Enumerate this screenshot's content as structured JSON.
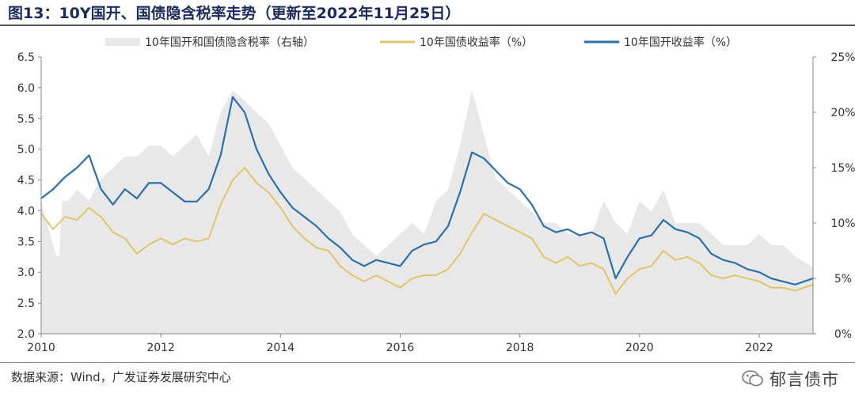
{
  "title": "图13：10Y国开、国债隐含税率走势（更新至2022年11月25日）",
  "source": "数据来源：Wind，广发证券发展研究中心",
  "watermark": "郁言债市",
  "colors": {
    "tax_fill": "#e8e8e8",
    "govt_line": "#e2c46a",
    "cdb_line": "#2b6fad"
  },
  "chart_data": {
    "type": "line",
    "title": "10Y国开、国债隐含税率走势",
    "x_ticks": [
      "2010",
      "2012",
      "2014",
      "2016",
      "2018",
      "2020",
      "2022"
    ],
    "x_range": [
      2010.0,
      2022.9
    ],
    "y_left": {
      "range": [
        2.0,
        6.5
      ],
      "ticks": [
        "2.0",
        "2.5",
        "3.0",
        "3.5",
        "4.0",
        "4.5",
        "5.0",
        "5.5",
        "6.0",
        "6.5"
      ]
    },
    "y_right": {
      "range": [
        0,
        25
      ],
      "ticks": [
        "0%",
        "5%",
        "10%",
        "15%",
        "20%",
        "25%"
      ]
    },
    "series": [
      {
        "name": "10年国开和国债隐含税率（右轴）",
        "kind": "area",
        "axis": "right",
        "x": [
          2010.0,
          2010.15,
          2010.25,
          2010.3,
          2010.35,
          2010.45,
          2010.6,
          2010.8,
          2011.0,
          2011.2,
          2011.4,
          2011.6,
          2011.8,
          2012.0,
          2012.2,
          2012.4,
          2012.6,
          2012.8,
          2013.0,
          2013.2,
          2013.4,
          2013.6,
          2013.8,
          2014.0,
          2014.2,
          2014.4,
          2014.6,
          2014.8,
          2015.0,
          2015.2,
          2015.4,
          2015.6,
          2015.8,
          2016.0,
          2016.2,
          2016.4,
          2016.6,
          2016.8,
          2017.0,
          2017.2,
          2017.4,
          2017.6,
          2017.8,
          2018.0,
          2018.2,
          2018.4,
          2018.6,
          2018.8,
          2019.0,
          2019.2,
          2019.4,
          2019.6,
          2019.8,
          2020.0,
          2020.2,
          2020.4,
          2020.6,
          2020.8,
          2021.0,
          2021.2,
          2021.4,
          2021.6,
          2021.8,
          2022.0,
          2022.2,
          2022.4,
          2022.6,
          2022.9
        ],
        "values": [
          12,
          9,
          7,
          7,
          12,
          12,
          13,
          12,
          14,
          15,
          16,
          16,
          17,
          17,
          16,
          17,
          18,
          16,
          20,
          22,
          21,
          20,
          19,
          17,
          15,
          14,
          13,
          12,
          11,
          9,
          8,
          7,
          8,
          9,
          10,
          9,
          12,
          13,
          17,
          22,
          18,
          14,
          13,
          12,
          11,
          10,
          10,
          9,
          9,
          9,
          12,
          10,
          9,
          12,
          11,
          13,
          10,
          10,
          10,
          9,
          8,
          8,
          8,
          9,
          8,
          8,
          7,
          6
        ]
      },
      {
        "name": "10年国债收益率（%）",
        "kind": "line",
        "axis": "left",
        "x": [
          2010.0,
          2010.2,
          2010.4,
          2010.6,
          2010.8,
          2011.0,
          2011.2,
          2011.4,
          2011.6,
          2011.8,
          2012.0,
          2012.2,
          2012.4,
          2012.6,
          2012.8,
          2013.0,
          2013.2,
          2013.4,
          2013.6,
          2013.8,
          2014.0,
          2014.2,
          2014.4,
          2014.6,
          2014.8,
          2015.0,
          2015.2,
          2015.4,
          2015.6,
          2015.8,
          2016.0,
          2016.2,
          2016.4,
          2016.6,
          2016.8,
          2017.0,
          2017.2,
          2017.4,
          2017.6,
          2017.8,
          2018.0,
          2018.2,
          2018.4,
          2018.6,
          2018.8,
          2019.0,
          2019.2,
          2019.4,
          2019.6,
          2019.8,
          2020.0,
          2020.2,
          2020.4,
          2020.6,
          2020.8,
          2021.0,
          2021.2,
          2021.4,
          2021.6,
          2021.8,
          2022.0,
          2022.2,
          2022.4,
          2022.6,
          2022.9
        ],
        "values": [
          3.95,
          3.7,
          3.9,
          3.85,
          4.05,
          3.9,
          3.65,
          3.55,
          3.3,
          3.45,
          3.55,
          3.45,
          3.55,
          3.5,
          3.55,
          4.1,
          4.5,
          4.7,
          4.45,
          4.3,
          4.05,
          3.75,
          3.55,
          3.4,
          3.35,
          3.1,
          2.95,
          2.85,
          2.95,
          2.85,
          2.75,
          2.9,
          2.95,
          2.95,
          3.05,
          3.3,
          3.65,
          3.95,
          3.85,
          3.75,
          3.65,
          3.55,
          3.25,
          3.15,
          3.25,
          3.1,
          3.15,
          3.05,
          2.65,
          2.9,
          3.05,
          3.1,
          3.35,
          3.2,
          3.25,
          3.15,
          2.95,
          2.9,
          2.95,
          2.9,
          2.85,
          2.75,
          2.75,
          2.7,
          2.8
        ]
      },
      {
        "name": "10年国开收益率（%）",
        "kind": "line",
        "axis": "left",
        "x": [
          2010.0,
          2010.2,
          2010.4,
          2010.6,
          2010.8,
          2011.0,
          2011.2,
          2011.4,
          2011.6,
          2011.8,
          2012.0,
          2012.2,
          2012.4,
          2012.6,
          2012.8,
          2013.0,
          2013.2,
          2013.4,
          2013.6,
          2013.8,
          2014.0,
          2014.2,
          2014.4,
          2014.6,
          2014.8,
          2015.0,
          2015.2,
          2015.4,
          2015.6,
          2015.8,
          2016.0,
          2016.2,
          2016.4,
          2016.6,
          2016.8,
          2017.0,
          2017.2,
          2017.4,
          2017.6,
          2017.8,
          2018.0,
          2018.2,
          2018.4,
          2018.6,
          2018.8,
          2019.0,
          2019.2,
          2019.4,
          2019.6,
          2019.8,
          2020.0,
          2020.2,
          2020.4,
          2020.6,
          2020.8,
          2021.0,
          2021.2,
          2021.4,
          2021.6,
          2021.8,
          2022.0,
          2022.2,
          2022.4,
          2022.6,
          2022.9
        ],
        "values": [
          4.2,
          4.35,
          4.55,
          4.7,
          4.9,
          4.35,
          4.1,
          4.35,
          4.2,
          4.45,
          4.45,
          4.3,
          4.15,
          4.15,
          4.35,
          4.9,
          5.85,
          5.6,
          5.0,
          4.6,
          4.3,
          4.05,
          3.9,
          3.75,
          3.55,
          3.4,
          3.2,
          3.1,
          3.2,
          3.15,
          3.1,
          3.35,
          3.45,
          3.5,
          3.75,
          4.3,
          4.95,
          4.85,
          4.65,
          4.45,
          4.35,
          4.1,
          3.75,
          3.65,
          3.7,
          3.6,
          3.65,
          3.55,
          2.9,
          3.25,
          3.55,
          3.6,
          3.85,
          3.7,
          3.65,
          3.55,
          3.3,
          3.2,
          3.15,
          3.05,
          3.0,
          2.9,
          2.85,
          2.8,
          2.9
        ]
      }
    ],
    "legend_position": "top"
  }
}
